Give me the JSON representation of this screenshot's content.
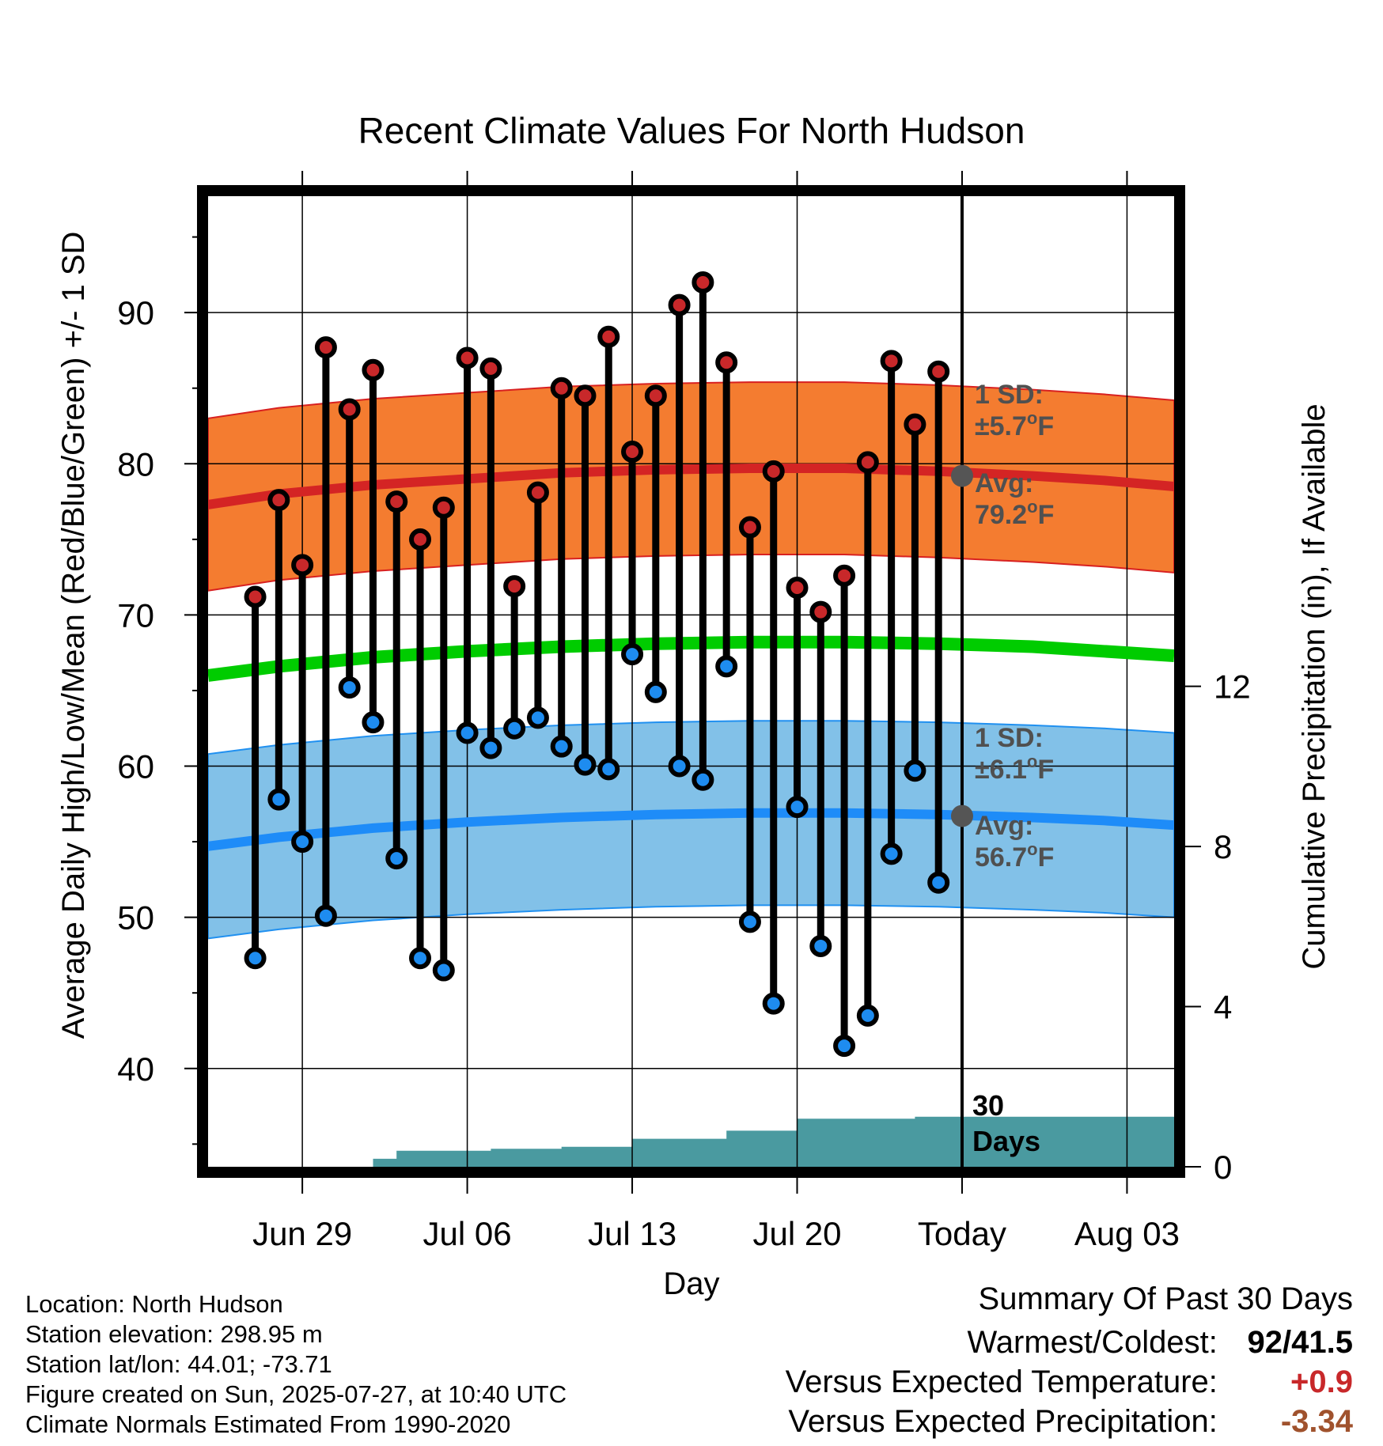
{
  "chart_data": {
    "type": "line",
    "title": "Recent Climate Values For North Hudson",
    "xlabel": "Day",
    "ylabel": "Average Daily High/Low/Mean (Red/Blue/Green) +/- 1 SD",
    "y2label": "Cumulative Precipitation (in), If Available",
    "ylim": [
      33.5,
      97.7
    ],
    "y2lim": [
      0,
      24
    ],
    "xlim": [
      "2025-06-25",
      "2025-08-05"
    ],
    "grid": true,
    "yticks": [
      40,
      50,
      60,
      70,
      80,
      90
    ],
    "y2ticks": [
      0,
      4,
      8,
      12
    ],
    "xticks": [
      {
        "date": "2025-06-29",
        "label": "Jun 29"
      },
      {
        "date": "2025-07-06",
        "label": "Jul 06"
      },
      {
        "date": "2025-07-13",
        "label": "Jul 13"
      },
      {
        "date": "2025-07-20",
        "label": "Jul 20"
      },
      {
        "date": "2025-07-27",
        "label": "Today"
      },
      {
        "date": "2025-08-03",
        "label": "Aug 03"
      }
    ],
    "today": "2025-07-27",
    "today_label": [
      "30",
      "Days"
    ],
    "observed": {
      "dates": [
        "2025-06-27",
        "2025-06-28",
        "2025-06-29",
        "2025-06-30",
        "2025-07-01",
        "2025-07-02",
        "2025-07-03",
        "2025-07-04",
        "2025-07-05",
        "2025-07-06",
        "2025-07-07",
        "2025-07-08",
        "2025-07-09",
        "2025-07-10",
        "2025-07-11",
        "2025-07-12",
        "2025-07-13",
        "2025-07-14",
        "2025-07-15",
        "2025-07-16",
        "2025-07-17",
        "2025-07-18",
        "2025-07-19",
        "2025-07-20",
        "2025-07-21",
        "2025-07-22",
        "2025-07-23",
        "2025-07-24",
        "2025-07-25",
        "2025-07-26"
      ],
      "high": [
        71.2,
        77.6,
        73.3,
        87.7,
        83.6,
        86.2,
        77.5,
        75.0,
        77.1,
        87.0,
        86.3,
        71.9,
        78.1,
        85.0,
        84.5,
        88.4,
        80.8,
        84.5,
        90.5,
        92.0,
        86.7,
        75.8,
        79.5,
        71.8,
        70.2,
        72.6,
        80.1,
        86.8,
        82.6,
        86.1
      ],
      "low": [
        47.3,
        57.8,
        55.0,
        50.1,
        65.2,
        62.9,
        53.9,
        47.3,
        46.5,
        62.2,
        61.2,
        62.5,
        63.2,
        61.3,
        60.1,
        59.8,
        67.4,
        64.9,
        60.0,
        59.1,
        66.6,
        49.7,
        44.3,
        57.3,
        48.1,
        41.5,
        43.5,
        54.2,
        59.7,
        52.3
      ],
      "high_color": "#c8282a",
      "low_color": "#1e8cf0"
    },
    "normals": {
      "dates": [
        "2025-06-25",
        "2025-06-28",
        "2025-07-02",
        "2025-07-06",
        "2025-07-10",
        "2025-07-14",
        "2025-07-18",
        "2025-07-22",
        "2025-07-26",
        "2025-07-30",
        "2025-08-02",
        "2025-08-05"
      ],
      "high_avg": [
        77.3,
        78.0,
        78.6,
        79.0,
        79.4,
        79.6,
        79.7,
        79.7,
        79.5,
        79.2,
        78.9,
        78.5
      ],
      "high_sd": 5.7,
      "low_avg": [
        54.7,
        55.3,
        55.9,
        56.3,
        56.6,
        56.8,
        56.9,
        56.9,
        56.8,
        56.6,
        56.4,
        56.1
      ],
      "low_sd": 6.1,
      "mean": [
        66.0,
        66.6,
        67.2,
        67.6,
        67.9,
        68.1,
        68.2,
        68.2,
        68.1,
        67.9,
        67.6,
        67.3
      ],
      "high_band_color": "#f47c30",
      "low_band_color": "#82c1e8",
      "mean_color": "#00cc00"
    },
    "precipitation": {
      "dates": [
        "2025-06-27",
        "2025-06-30",
        "2025-07-02",
        "2025-07-03",
        "2025-07-05",
        "2025-07-06",
        "2025-07-07",
        "2025-07-09",
        "2025-07-10",
        "2025-07-12",
        "2025-07-13",
        "2025-07-15",
        "2025-07-16",
        "2025-07-17",
        "2025-07-18",
        "2025-07-19",
        "2025-07-20",
        "2025-07-21",
        "2025-07-23",
        "2025-07-24",
        "2025-07-25",
        "2025-07-27",
        "2025-08-05"
      ],
      "cumulative": [
        0,
        0,
        0.2,
        0.4,
        0.4,
        0.4,
        0.45,
        0.45,
        0.5,
        0.5,
        0.7,
        0.7,
        0.7,
        0.9,
        0.9,
        0.9,
        1.2,
        1.2,
        1.2,
        1.2,
        1.25,
        1.25,
        1.25
      ],
      "color": "#4a9aa0"
    },
    "annotations": {
      "high_sd": [
        "1 SD:",
        "±5.7",
        "o",
        "F"
      ],
      "high_avg": [
        "Avg:",
        "79.2",
        "o",
        "F"
      ],
      "low_sd": [
        "1 SD:",
        "±6.1",
        "o",
        "F"
      ],
      "low_avg": [
        "Avg:",
        "56.7",
        "o",
        "F"
      ],
      "today_high_avg": 79.2,
      "today_low_avg": 56.7
    }
  },
  "info": {
    "location": "Location: North Hudson",
    "elevation": "Station elevation: 298.95 m",
    "latlon": "Station lat/lon: 44.01; -73.71",
    "created": "Figure created on Sun, 2025-07-27, at 10:40 UTC",
    "normals": "Climate Normals Estimated From 1990-2020"
  },
  "summary": {
    "heading": "Summary Of Past 30 Days",
    "warm_cold_label": "Warmest/Coldest:",
    "warm_cold_value": "92/41.5",
    "temp_label": "Versus Expected Temperature:",
    "temp_value": "+0.9",
    "temp_color": "#c8282a",
    "precip_label": "Versus Expected Precipitation:",
    "precip_value": "-3.34",
    "precip_color": "#a0522d"
  }
}
